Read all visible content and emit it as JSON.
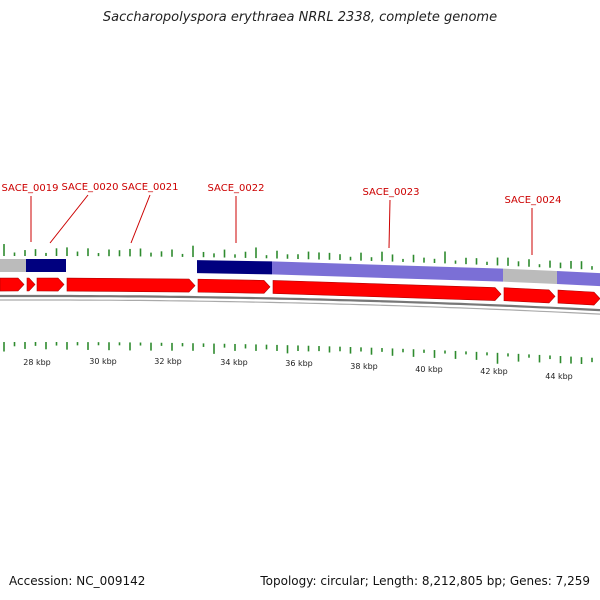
{
  "title": "Saccharopolyspora erythraea NRRL 2338, complete genome",
  "footer": {
    "accession": "Accession: NC_009142",
    "summary": "Topology: circular; Length: 8,212,805 bp; Genes: 7,259"
  },
  "colors": {
    "cds": "#ff0000",
    "cds_edge": "#b30000",
    "backbone": "#777777",
    "gc_tick": "#2e8b2e",
    "label": "#cc0000",
    "hit_dark": "#00007f",
    "hit_light": "#7b6fd6",
    "hit_none": "#bbbbbb"
  },
  "genes": [
    {
      "label": "SACE_0019"
    },
    {
      "label": "SACE_0020"
    },
    {
      "label": "SACE_0021"
    },
    {
      "label": "SACE_0022"
    },
    {
      "label": "SACE_0023"
    },
    {
      "label": "SACE_0024"
    }
  ],
  "scale": [
    {
      "label": "28 kbp",
      "kbp": 28
    },
    {
      "label": "30 kbp",
      "kbp": 30
    },
    {
      "label": "32 kbp",
      "kbp": 32
    },
    {
      "label": "34 kbp",
      "kbp": 34
    },
    {
      "label": "36 kbp",
      "kbp": 36
    },
    {
      "label": "38 kbp",
      "kbp": 38
    },
    {
      "label": "40 kbp",
      "kbp": 40
    },
    {
      "label": "42 kbp",
      "kbp": 42
    },
    {
      "label": "44 kbp",
      "kbp": 44
    }
  ]
}
